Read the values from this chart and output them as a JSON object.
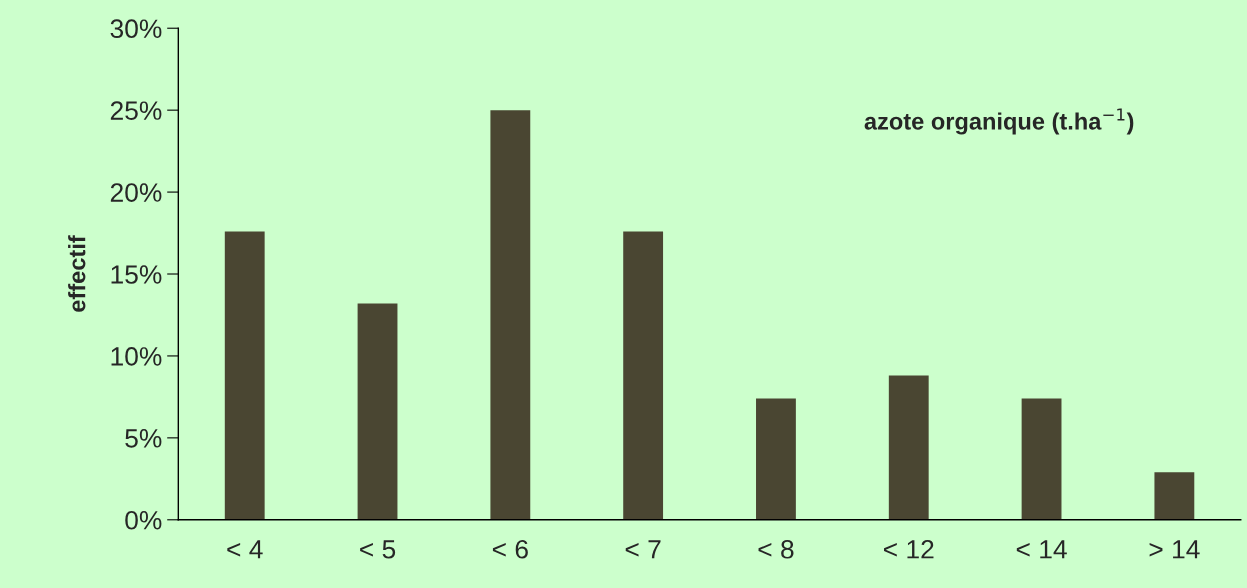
{
  "chart_data": {
    "type": "bar",
    "categories": [
      "< 4",
      "< 5",
      "< 6",
      "< 7",
      "< 8",
      "< 12",
      "< 14",
      "> 14"
    ],
    "values": [
      17.6,
      13.2,
      25.0,
      17.6,
      7.4,
      8.8,
      7.4,
      2.9
    ],
    "color": "#4a4632",
    "ylabel": "effectif",
    "annotations": [
      "azote organique (t.ha$^{−1}$)"
    ],
    "ylim": [
      0,
      30
    ],
    "yticks": [
      {
        "value": 0,
        "label": "0%"
      },
      {
        "value": 5,
        "label": "5%"
      },
      {
        "value": 10,
        "label": "10%"
      },
      {
        "value": 15,
        "label": "15%"
      },
      {
        "value": 20,
        "label": "20%"
      },
      {
        "value": 25,
        "label": "25%"
      },
      {
        "value": 30,
        "label": "30%"
      }
    ],
    "grid": false,
    "legend": false
  }
}
